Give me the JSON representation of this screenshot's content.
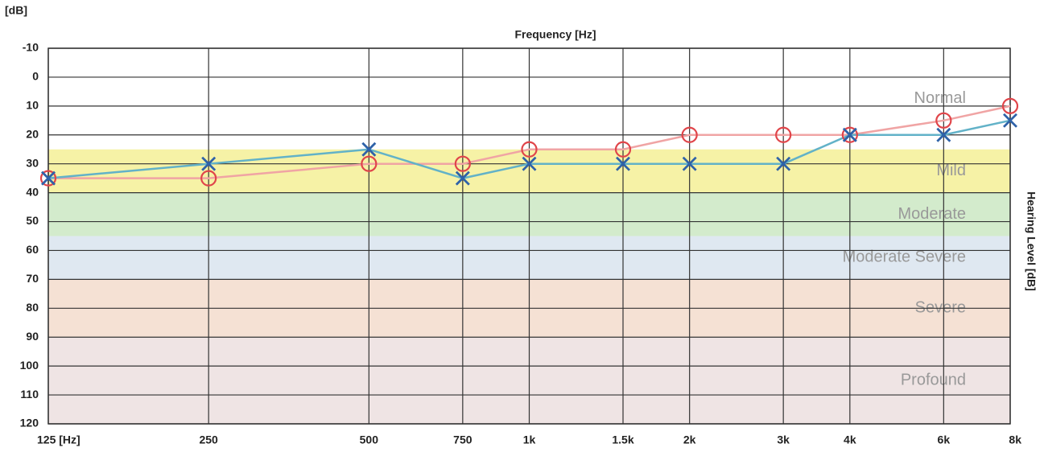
{
  "chart_data": {
    "type": "audiogram",
    "title": "Frequency [Hz]",
    "y_unit_label": "[dB]",
    "y2_label": "Hearing Level [dB]",
    "log_x": true,
    "invert_y": true,
    "grid": true,
    "xlim": [
      125,
      8000
    ],
    "xticks": [
      {
        "value": 125,
        "label": "125 [Hz]"
      },
      250,
      500,
      750,
      {
        "value": 1000,
        "label": "1k"
      },
      {
        "value": 1500,
        "label": "1.5k"
      },
      {
        "value": 2000,
        "label": "2k"
      },
      {
        "value": 3000,
        "label": "3k"
      },
      {
        "value": 4000,
        "label": "4k"
      },
      {
        "value": 6000,
        "label": "6k"
      },
      {
        "value": 8000,
        "label": "8k"
      }
    ],
    "ylim": [
      -10,
      120
    ],
    "yticks": [
      -10,
      0,
      10,
      20,
      30,
      40,
      50,
      60,
      70,
      80,
      90,
      100,
      110,
      120
    ],
    "bands": [
      {
        "name": "Normal",
        "range": [
          -10,
          25
        ],
        "color": "#ffffff"
      },
      {
        "name": "Mild",
        "range": [
          25,
          40
        ],
        "color": "#f6f2a6"
      },
      {
        "name": "Moderate",
        "range": [
          40,
          55
        ],
        "color": "#d3ebcc"
      },
      {
        "name": "Moderate Severe",
        "range": [
          55,
          70
        ],
        "color": "#dfe8f1"
      },
      {
        "name": "Severe",
        "range": [
          70,
          90
        ],
        "color": "#f5e1d4"
      },
      {
        "name": "Profound",
        "range": [
          90,
          120
        ],
        "color": "#efe4e4"
      }
    ],
    "x": [
      125,
      250,
      500,
      750,
      1000,
      1500,
      2000,
      3000,
      4000,
      6000,
      8000
    ],
    "series": [
      {
        "marker": "circle",
        "color": "#e0454a",
        "line_color": "#f0a4a4",
        "values": [
          35,
          35,
          30,
          30,
          25,
          25,
          20,
          20,
          20,
          15,
          10
        ]
      },
      {
        "marker": "x",
        "color": "#2f62a8",
        "line_color": "#62b2c8",
        "values": [
          35,
          30,
          25,
          35,
          30,
          30,
          30,
          30,
          20,
          20,
          15
        ]
      }
    ]
  }
}
